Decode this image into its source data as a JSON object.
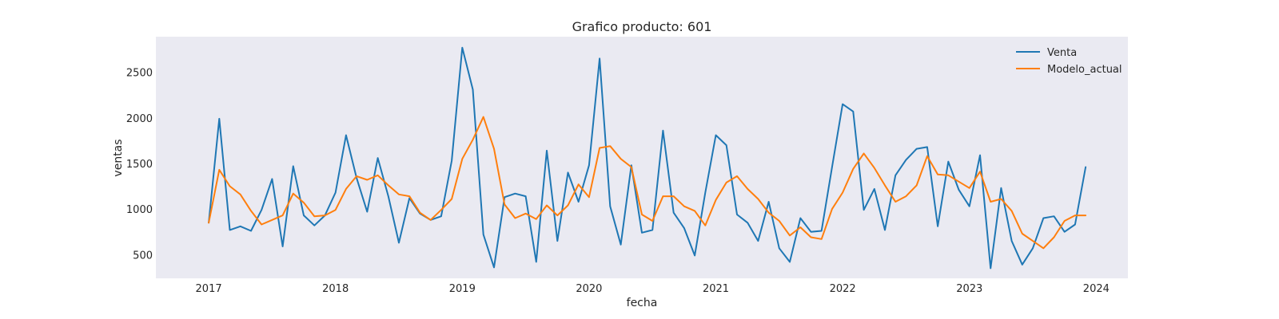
{
  "chart_data": {
    "type": "line",
    "title": "Grafico producto: 601",
    "xlabel": "fecha",
    "ylabel": "ventas",
    "x_tick_labels": [
      "2017",
      "2018",
      "2019",
      "2020",
      "2021",
      "2022",
      "2023",
      "2024"
    ],
    "y_ticks": [
      500,
      1000,
      1500,
      2000,
      2500
    ],
    "x_range": [
      "2016-08",
      "2024-04"
    ],
    "ylim": [
      250,
      2900
    ],
    "grid": false,
    "legend_position": "top-right",
    "background_color": "#eaeaf2",
    "x": [
      "2017-01",
      "2017-02",
      "2017-03",
      "2017-04",
      "2017-05",
      "2017-06",
      "2017-07",
      "2017-08",
      "2017-09",
      "2017-10",
      "2017-11",
      "2017-12",
      "2018-01",
      "2018-02",
      "2018-03",
      "2018-04",
      "2018-05",
      "2018-06",
      "2018-07",
      "2018-08",
      "2018-09",
      "2018-10",
      "2018-11",
      "2018-12",
      "2019-01",
      "2019-02",
      "2019-03",
      "2019-04",
      "2019-05",
      "2019-06",
      "2019-07",
      "2019-08",
      "2019-09",
      "2019-10",
      "2019-11",
      "2019-12",
      "2020-01",
      "2020-02",
      "2020-03",
      "2020-04",
      "2020-05",
      "2020-06",
      "2020-07",
      "2020-08",
      "2020-09",
      "2020-10",
      "2020-11",
      "2020-12",
      "2021-01",
      "2021-02",
      "2021-03",
      "2021-04",
      "2021-05",
      "2021-06",
      "2021-07",
      "2021-08",
      "2021-09",
      "2021-10",
      "2021-11",
      "2021-12",
      "2022-01",
      "2022-02",
      "2022-03",
      "2022-04",
      "2022-05",
      "2022-06",
      "2022-07",
      "2022-08",
      "2022-09",
      "2022-10",
      "2022-11",
      "2022-12",
      "2023-01",
      "2023-02",
      "2023-03",
      "2023-04",
      "2023-05",
      "2023-06",
      "2023-07",
      "2023-08",
      "2023-09",
      "2023-10",
      "2023-11",
      "2023-12"
    ],
    "series": [
      {
        "name": "Venta",
        "color": "#1f77b4",
        "values": [
          860,
          2000,
          780,
          820,
          770,
          1000,
          1340,
          600,
          1480,
          940,
          830,
          940,
          1190,
          1820,
          1350,
          980,
          1570,
          1150,
          640,
          1130,
          960,
          890,
          930,
          1540,
          2780,
          2320,
          730,
          370,
          1140,
          1180,
          1150,
          430,
          1650,
          660,
          1410,
          1090,
          1490,
          2660,
          1040,
          620,
          1490,
          750,
          780,
          1870,
          970,
          800,
          500,
          1190,
          1820,
          1710,
          950,
          860,
          660,
          1090,
          580,
          430,
          910,
          760,
          770,
          1470,
          2160,
          2080,
          1000,
          1230,
          780,
          1380,
          1550,
          1670,
          1690,
          820,
          1530,
          1220,
          1040,
          1600,
          360,
          1240,
          660,
          400,
          580,
          910,
          930,
          760,
          840,
          1470
        ]
      },
      {
        "name": "Modelo_actual",
        "color": "#ff7f0e",
        "values": [
          860,
          1440,
          1260,
          1170,
          990,
          840,
          890,
          940,
          1180,
          1080,
          930,
          940,
          1000,
          1230,
          1370,
          1330,
          1380,
          1270,
          1170,
          1150,
          970,
          890,
          1000,
          1120,
          1560,
          1770,
          2020,
          1670,
          1060,
          910,
          960,
          900,
          1050,
          940,
          1050,
          1280,
          1140,
          1680,
          1700,
          1560,
          1470,
          950,
          880,
          1150,
          1150,
          1040,
          990,
          830,
          1110,
          1300,
          1370,
          1230,
          1120,
          970,
          880,
          720,
          810,
          700,
          680,
          1010,
          1190,
          1450,
          1620,
          1460,
          1270,
          1090,
          1150,
          1270,
          1590,
          1390,
          1380,
          1310,
          1240,
          1420,
          1090,
          1120,
          990,
          740,
          660,
          580,
          700,
          880,
          940,
          940
        ]
      }
    ]
  }
}
